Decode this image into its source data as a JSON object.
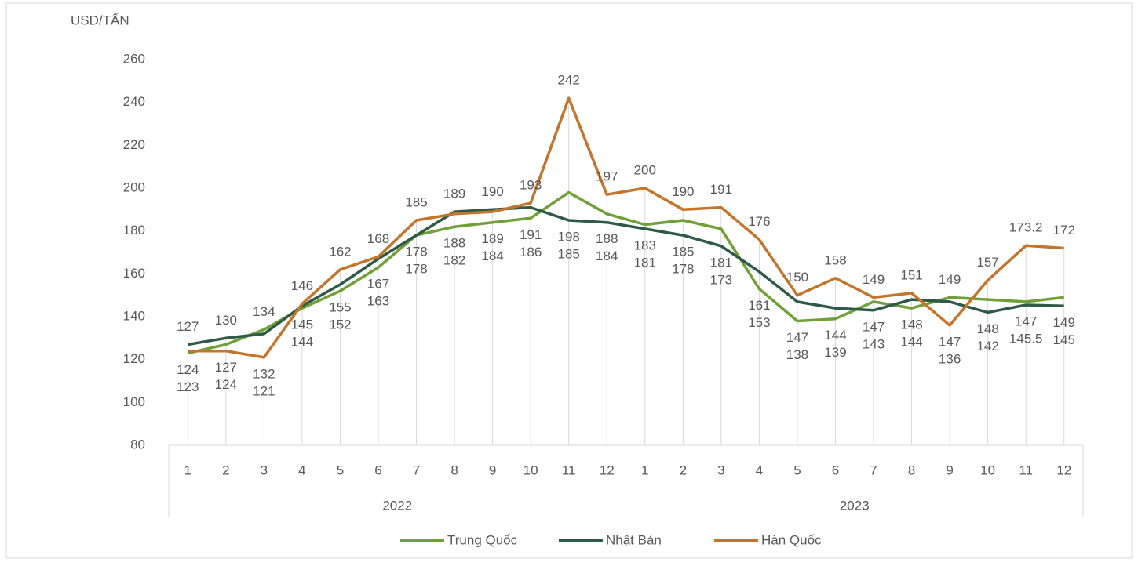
{
  "chart_data": {
    "type": "line",
    "y_axis_label": "USD/TẤN",
    "categories": [
      "1",
      "2",
      "3",
      "4",
      "5",
      "6",
      "7",
      "8",
      "9",
      "10",
      "11",
      "12",
      "1",
      "2",
      "3",
      "4",
      "5",
      "6",
      "7",
      "8",
      "9",
      "10",
      "11",
      "12"
    ],
    "groups": [
      "2022",
      "2023"
    ],
    "ylim": [
      80,
      260
    ],
    "yticks": [
      80,
      100,
      120,
      140,
      160,
      180,
      200,
      220,
      240,
      260
    ],
    "legend": "bottom",
    "series": [
      {
        "name": "Trung Quốc",
        "color": "#70a037",
        "values": [
          123,
          127,
          134,
          144,
          152,
          163,
          178,
          182,
          184,
          186,
          198,
          188,
          183,
          185,
          181,
          153,
          138,
          139,
          147,
          144,
          149,
          148,
          147,
          149
        ]
      },
      {
        "name": "Nhật Bản",
        "color": "#2e5a46",
        "values": [
          127,
          130,
          132,
          145,
          155,
          167,
          178,
          189,
          190,
          191,
          185,
          184,
          181,
          178,
          173,
          161,
          147,
          144,
          143,
          148,
          147,
          142,
          145.5,
          145
        ]
      },
      {
        "name": "Hàn Quốc",
        "color": "#c5742b",
        "values": [
          124,
          124,
          121,
          146,
          162,
          168,
          185,
          188,
          189,
          193,
          242,
          197,
          200,
          190,
          191,
          176,
          150,
          158,
          149,
          151,
          136,
          157,
          173.2,
          172
        ]
      }
    ]
  }
}
